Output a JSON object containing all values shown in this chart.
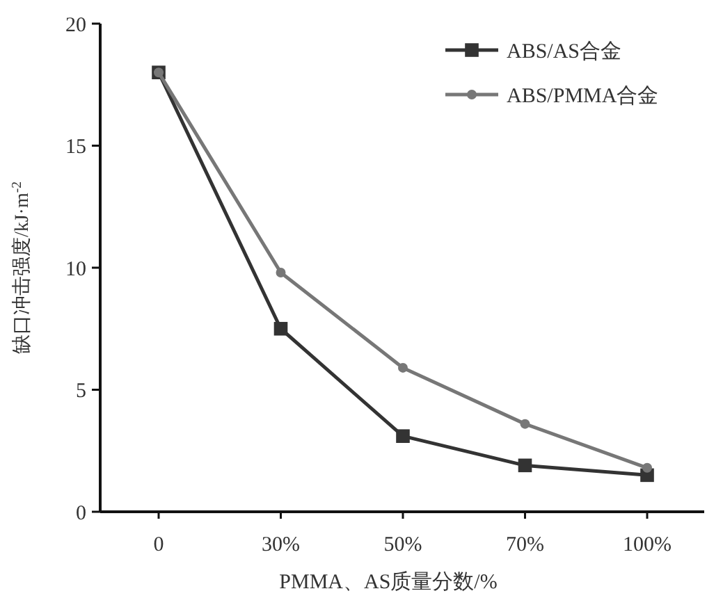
{
  "chart_data": {
    "type": "line",
    "xlabel": "PMMA、AS质量分数/%",
    "ylabel": "缺口冲击强度/kJ·m$^{-2}$",
    "categories": [
      "0",
      "30%",
      "50%",
      "70%",
      "100%"
    ],
    "ylim": [
      0,
      20
    ],
    "yticks": [
      0,
      5,
      10,
      15,
      20
    ],
    "grid": false,
    "legend": "top right",
    "line_style": "solid",
    "series": [
      {
        "name": "ABS/AS合金",
        "color": "#333333",
        "marker": "square",
        "values": [
          18,
          7.5,
          3.1,
          1.9,
          1.5
        ]
      },
      {
        "name": "ABS/PMMA合金",
        "color": "#777777",
        "marker": "circle",
        "values": [
          18,
          9.8,
          5.9,
          3.6,
          1.8
        ]
      }
    ]
  }
}
